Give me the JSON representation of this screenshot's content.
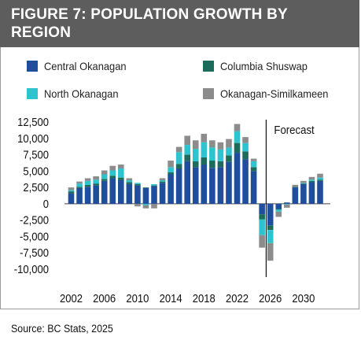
{
  "header": {
    "title": "FIGURE 7: POPULATION GROWTH BY REGION"
  },
  "legend": {
    "items": [
      {
        "label": "Central Okanagan",
        "color": "#1f4e9c"
      },
      {
        "label": "Columbia Shuswap",
        "color": "#1d6b5a"
      },
      {
        "label": "North Okanagan",
        "color": "#2ec4cf"
      },
      {
        "label": "Okanagan-Similkameen",
        "color": "#8c8c8c"
      }
    ]
  },
  "source": "Source: BC Stats, 2025",
  "chart_data": {
    "type": "bar",
    "stacked": true,
    "annotation": "Forecast",
    "forecast_start_year": 2025.5,
    "ylim": [
      -10000,
      12500
    ],
    "yticks": [
      12500,
      10000,
      7500,
      5000,
      2500,
      0,
      -2500,
      -5000,
      -7500,
      -10000
    ],
    "ytick_labels": [
      "12,500",
      "10,000",
      "7,500",
      "5,000",
      "2,500",
      "0",
      "-2,500",
      "-5,000",
      "-7,500",
      "-10,000"
    ],
    "xticks": [
      2002,
      2006,
      2010,
      2014,
      2018,
      2022,
      2026,
      2030
    ],
    "categories": [
      2002,
      2003,
      2004,
      2005,
      2006,
      2007,
      2008,
      2009,
      2010,
      2011,
      2012,
      2013,
      2014,
      2015,
      2016,
      2017,
      2018,
      2019,
      2020,
      2021,
      2022,
      2023,
      2024,
      2025,
      2026,
      2027,
      2028,
      2029,
      2030,
      2031,
      2032
    ],
    "series": [
      {
        "name": "Central Okanagan",
        "color": "#1f4e9c",
        "values": [
          1600,
          2400,
          2600,
          2800,
          3500,
          3900,
          3600,
          3000,
          2800,
          2400,
          2700,
          3200,
          4500,
          5400,
          6500,
          5600,
          6000,
          5500,
          5600,
          6400,
          7800,
          6800,
          5000,
          -1600,
          -3300,
          -800,
          200,
          2500,
          3000,
          3300,
          3500
        ]
      },
      {
        "name": "Columbia Shuswap",
        "color": "#1d6b5a",
        "values": [
          300,
          200,
          300,
          300,
          300,
          400,
          400,
          300,
          200,
          100,
          100,
          200,
          300,
          700,
          1000,
          900,
          1100,
          1100,
          900,
          1000,
          1500,
          1200,
          600,
          -800,
          -700,
          -100,
          0,
          100,
          100,
          200,
          200
        ]
      },
      {
        "name": "North Okanagan",
        "color": "#2ec4cf",
        "values": [
          200,
          500,
          600,
          600,
          700,
          800,
          1400,
          300,
          200,
          -200,
          200,
          200,
          800,
          1800,
          1500,
          1900,
          2300,
          2000,
          1800,
          1200,
          1800,
          1300,
          900,
          -2400,
          -2000,
          -300,
          -100,
          0,
          100,
          200,
          300
        ]
      },
      {
        "name": "Okanagan-Similkameen",
        "color": "#8c8c8c",
        "values": [
          400,
          300,
          400,
          500,
          600,
          700,
          600,
          300,
          -400,
          -500,
          -700,
          300,
          1000,
          800,
          1400,
          1300,
          1300,
          1100,
          1100,
          1300,
          1100,
          900,
          400,
          -1900,
          -2700,
          -800,
          -500,
          300,
          300,
          400,
          600
        ]
      }
    ]
  }
}
